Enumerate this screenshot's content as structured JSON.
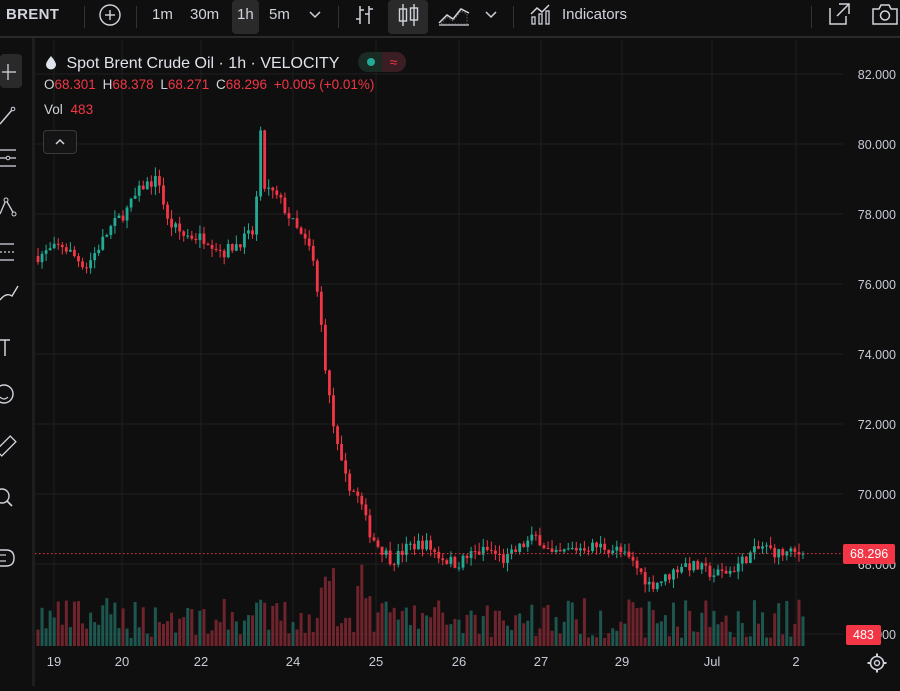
{
  "toolbar": {
    "symbol": "BRENT",
    "intervals": [
      "1m",
      "30m",
      "1h",
      "5m"
    ],
    "active_interval": "1h",
    "indicators_label": "Indicators"
  },
  "legend": {
    "title": "Spot Brent Crude Oil · 1h · VELOCITY",
    "o_label": "O",
    "o": "68.301",
    "h_label": "H",
    "h": "68.378",
    "l_label": "L",
    "l": "68.271",
    "c_label": "C",
    "c": "68.296",
    "change": "+0.005 (+0.01%)",
    "vol_label": "Vol",
    "vol": "483"
  },
  "price_badge": "68.296",
  "volume_badge": "483",
  "colors": {
    "up": "#22ab94",
    "down": "#f23645",
    "background": "#0f0f0f",
    "grid": "#1f1f1f"
  },
  "left_tools": [
    "crosshair-icon",
    "trend-line-icon",
    "fib-icon",
    "pattern-icon",
    "prediction-icon",
    "brush-icon",
    "text-icon",
    "emoji-icon",
    "ruler-icon",
    "zoom-icon",
    "magnet-icon"
  ],
  "chart_data": {
    "type": "candlestick",
    "y_ticks": [
      "82.000",
      "80.000",
      "78.000",
      "76.000",
      "74.000",
      "72.000",
      "70.000",
      "68.000",
      "66.000"
    ],
    "x_ticks": [
      "19",
      "20",
      "22",
      "24",
      "25",
      "26",
      "27",
      "29",
      "Jul",
      "2"
    ],
    "ylim": [
      65.6,
      82.6
    ],
    "last_price": 68.296,
    "grid": true,
    "close_path": [
      [
        0,
        76.8
      ],
      [
        3,
        77.1
      ],
      [
        6,
        76.5
      ],
      [
        9,
        77.6
      ],
      [
        11,
        78.1
      ],
      [
        13,
        78.8
      ],
      [
        15,
        79.0
      ],
      [
        16,
        77.8
      ],
      [
        18,
        77.4
      ],
      [
        21,
        77.3
      ],
      [
        23,
        76.9
      ],
      [
        25,
        77.2
      ],
      [
        27,
        77.5
      ],
      [
        27.5,
        80.8
      ],
      [
        28,
        78.8
      ],
      [
        30,
        78.4
      ],
      [
        32,
        77.6
      ],
      [
        34,
        76.9
      ],
      [
        35,
        75.2
      ],
      [
        36,
        73.0
      ],
      [
        37,
        71.5
      ],
      [
        38,
        70.5
      ],
      [
        40,
        69.8
      ],
      [
        41,
        69.0
      ],
      [
        42,
        68.6
      ],
      [
        44,
        68.1
      ],
      [
        46,
        68.5
      ],
      [
        48,
        68.6
      ],
      [
        50,
        68.2
      ],
      [
        52,
        68.0
      ],
      [
        54,
        68.3
      ],
      [
        56,
        68.4
      ],
      [
        58,
        68.1
      ],
      [
        60,
        68.5
      ],
      [
        62,
        68.8
      ],
      [
        64,
        68.2
      ],
      [
        66,
        68.4
      ],
      [
        68,
        68.5
      ],
      [
        70,
        68.5
      ],
      [
        72,
        68.4
      ],
      [
        74,
        68.0
      ],
      [
        76,
        67.4
      ],
      [
        78,
        67.6
      ],
      [
        80,
        68.0
      ],
      [
        82,
        67.9
      ],
      [
        84,
        67.7
      ],
      [
        86,
        67.8
      ],
      [
        88,
        68.2
      ],
      [
        90,
        68.5
      ],
      [
        92,
        68.3
      ],
      [
        94,
        68.3
      ],
      [
        95,
        68.296
      ]
    ]
  }
}
